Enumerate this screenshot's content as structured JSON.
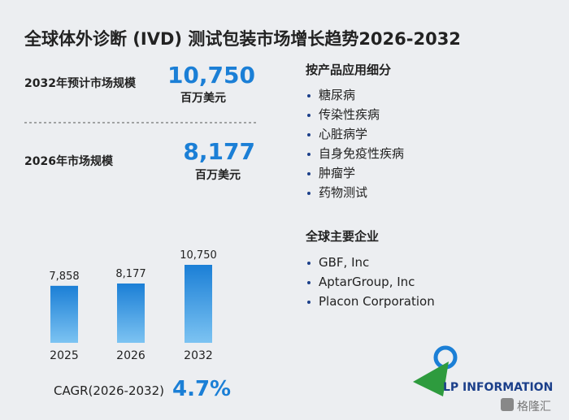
{
  "title": "全球体外诊断 (IVD) 测试包装市场增长趋势2026-2032",
  "stats": [
    {
      "label": "2032年预计市场规模",
      "value": "10,750",
      "unit": "百万美元"
    },
    {
      "label": "2026年市场规模",
      "value": "8,177",
      "unit": "百万美元"
    }
  ],
  "segments": {
    "heading": "按产品应用细分",
    "items": [
      "糖尿病",
      "传染性疾病",
      "心脏病学",
      "自身免疫性疾病",
      "肿瘤学",
      "药物测试"
    ]
  },
  "companies": {
    "heading": "全球主要企业",
    "items": [
      "GBF, Inc",
      "AptarGroup, Inc",
      "Placon Corporation"
    ]
  },
  "chart_data": {
    "type": "bar",
    "categories": [
      "2025",
      "2026",
      "2032"
    ],
    "values": [
      7858,
      8177,
      10750
    ],
    "value_labels": [
      "7,858",
      "8,177",
      "10,750"
    ],
    "color": "#1b7fd6"
  },
  "cagr": {
    "label": "CAGR(2026-2032)",
    "value": "4.7%"
  },
  "logo": "LP INFORMATION",
  "badge": "格隆汇"
}
